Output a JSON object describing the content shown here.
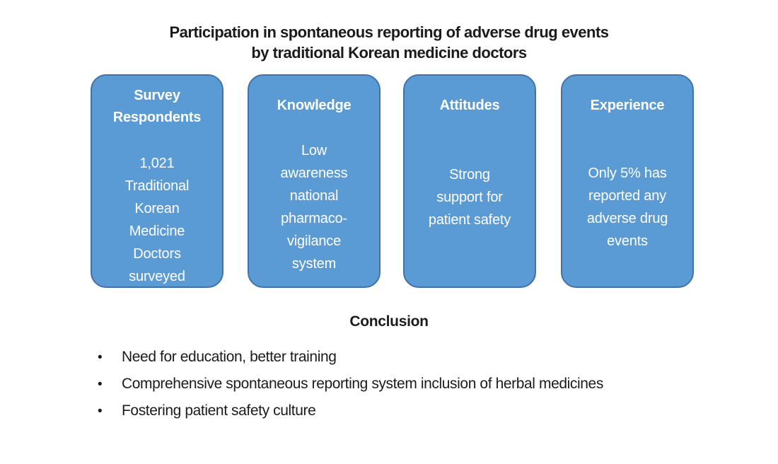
{
  "title": {
    "text": "Participation in spontaneous reporting of adverse drug events\nby traditional Korean medicine doctors"
  },
  "boxes": [
    {
      "heading": "Survey\nRespondents",
      "body": "1,021\nTraditional\nKorean\nMedicine\nDoctors\nsurveyed"
    },
    {
      "heading": "Knowledge",
      "body": "Low\nawareness\nnational\npharmaco-\nvigilance\nsystem"
    },
    {
      "heading": "Attitudes",
      "body": "Strong\nsupport for\npatient safety"
    },
    {
      "heading": "Experience",
      "body": "Only 5% has\nreported any\nadverse drug\nevents"
    }
  ],
  "conclusion": {
    "heading": "Conclusion",
    "bullet_char": "•",
    "bullets": [
      "Need for education, better training",
      "Comprehensive spontaneous reporting system inclusion of herbal medicines",
      "Fostering patient safety culture"
    ]
  },
  "colors": {
    "background": "#FFFFFF",
    "text": "#1B1B1B",
    "box_fill": "#5B9BD5",
    "box_border": "#4472A8",
    "box_text": "#FFFFFF"
  }
}
